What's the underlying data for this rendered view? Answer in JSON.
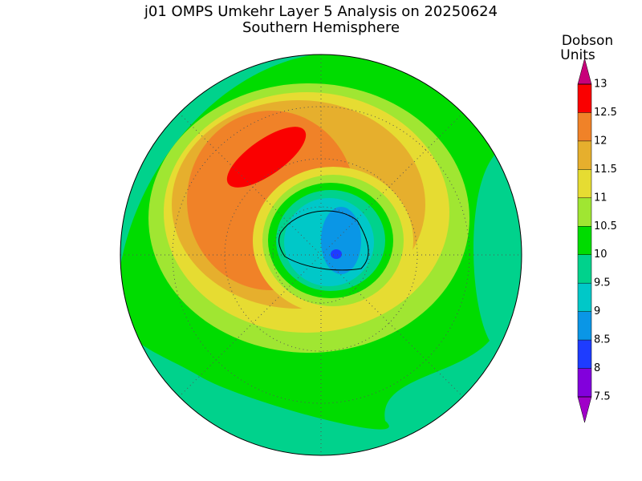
{
  "header": {
    "title": "j01 OMPS Umkehr Layer 5 Analysis on 20250624",
    "subtitle": "Southern Hemisphere"
  },
  "colorbar": {
    "label_lines": [
      "Dobson",
      "Units"
    ],
    "ticks": [
      7.5,
      8,
      8.5,
      9,
      9.5,
      10,
      10.5,
      11,
      11.5,
      12,
      12.5,
      13
    ],
    "colors": [
      "#a000c8",
      "#8200dc",
      "#1e3cff",
      "#0a96e6",
      "#00c8c8",
      "#00d28c",
      "#00dc00",
      "#a0e632",
      "#e6dc32",
      "#e6af2d",
      "#f08228",
      "#fa0000",
      "#c8007a"
    ]
  }
}
